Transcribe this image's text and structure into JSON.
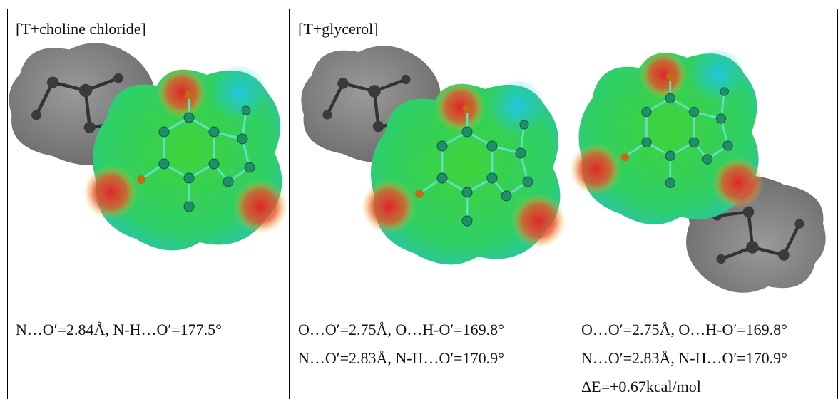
{
  "cells": [
    {
      "title": "[T+choline chloride]",
      "structures": [
        {
          "captions": [
            "N…O′=2.84Å, N-H…O′=177.5°"
          ]
        }
      ]
    },
    {
      "title": "[T+glycerol]",
      "structures": [
        {
          "captions": [
            "O…O′=2.75Å, O…H-O′=169.8°",
            "N…O′=2.83Å, N-H…O′=170.9°"
          ]
        },
        {
          "captions": [
            "O…O′=2.75Å, O…H-O′=169.8°",
            "N…O′=2.83Å, N-H…O′=170.9°",
            "ΔE=+0.67kcal/mol"
          ]
        }
      ]
    }
  ]
}
